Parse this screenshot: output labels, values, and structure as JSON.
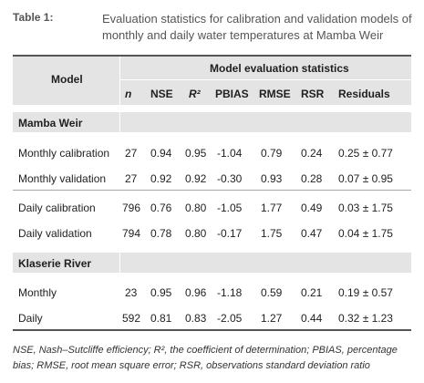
{
  "caption": {
    "label": "Table 1:",
    "text": "Evaluation statistics for calibration and validation models of monthly and daily water temperatures at Mamba Weir"
  },
  "table": {
    "model_header": "Model",
    "group_header": "Model evaluation statistics",
    "columns": [
      "n",
      "NSE",
      "R²",
      "PBIAS",
      "RMSE",
      "RSR",
      "Residuals"
    ],
    "sections": [
      {
        "title": "Mamba Weir",
        "rows": [
          {
            "label": "Monthly calibration",
            "values": [
              "27",
              "0.94",
              "0.95",
              "-1.04",
              "0.79",
              "0.24",
              "0.25 ± 0.77"
            ]
          },
          {
            "label": "Monthly validation",
            "values": [
              "27",
              "0.92",
              "0.92",
              "-0.30",
              "0.93",
              "0.28",
              "0.07 ± 0.95"
            ]
          },
          {
            "label": "Daily calibration",
            "values": [
              "796",
              "0.76",
              "0.80",
              "-1.05",
              "1.77",
              "0.49",
              "0.03 ± 1.75"
            ]
          },
          {
            "label": "Daily validation",
            "values": [
              "794",
              "0.78",
              "0.80",
              "-0.17",
              "1.75",
              "0.47",
              "0.04 ± 1.75"
            ]
          }
        ]
      },
      {
        "title": "Klaserie River",
        "rows": [
          {
            "label": "Monthly",
            "values": [
              "23",
              "0.95",
              "0.96",
              "-1.18",
              "0.59",
              "0.21",
              "0.19 ± 0.57"
            ]
          },
          {
            "label": "Daily",
            "values": [
              "592",
              "0.81",
              "0.83",
              "-2.05",
              "1.27",
              "0.44",
              "0.32 ± 1.23"
            ]
          }
        ]
      }
    ]
  },
  "footnote": "NSE, Nash–Sutcliffe efficiency; R², the coefficient of determination; PBIAS, percentage bias; RMSE, root mean square error; RSR, observations standard deviation ratio"
}
